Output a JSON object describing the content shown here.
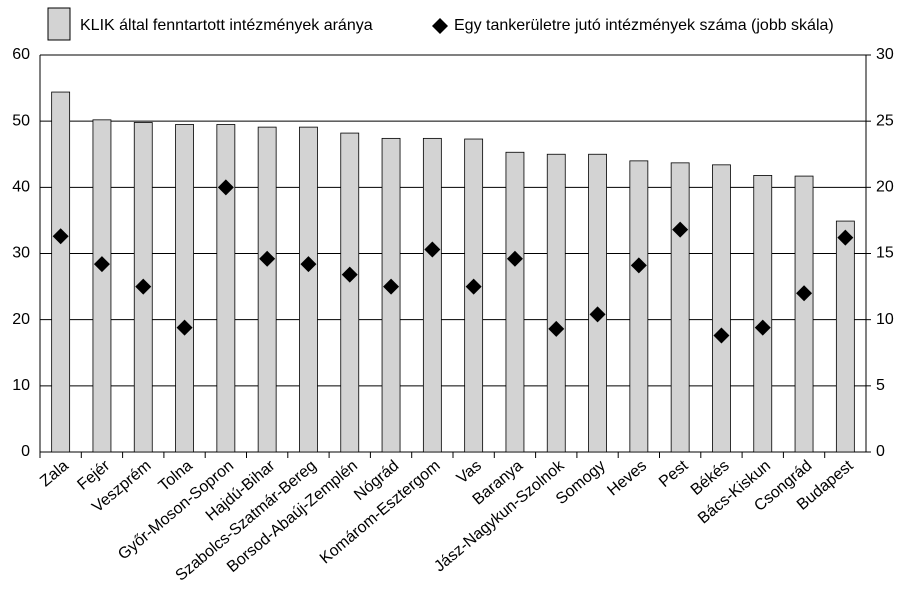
{
  "chart_data": {
    "type": "bar",
    "categories": [
      "Zala",
      "Fejér",
      "Veszprém",
      "Tolna",
      "Győr-Moson-Sopron",
      "Hajdú-Bihar",
      "Szabolcs-Szatmár-Bereg",
      "Borsod-Abaúj-Zemplén",
      "Nógrád",
      "Komárom-Esztergom",
      "Vas",
      "Baranya",
      "Jász-Nagykun-Szolnok",
      "Somogy",
      "Heves",
      "Pest",
      "Békés",
      "Bács-Kiskun",
      "Csongrád",
      "Budapest"
    ],
    "series": [
      {
        "name": "KLIK által fenntartott intézmények aránya",
        "type": "bar",
        "color": "#d3d3d3",
        "values": [
          54.4,
          50.2,
          49.8,
          49.5,
          49.5,
          49.1,
          49.1,
          48.2,
          47.4,
          47.4,
          47.3,
          45.3,
          45.0,
          45.0,
          44.0,
          43.7,
          43.4,
          41.8,
          41.7,
          34.9
        ]
      },
      {
        "name": "Egy tankerületre jutó intézmények száma (jobb skála)",
        "type": "scatter",
        "axis": "y2",
        "color": "#000000",
        "values": [
          16.3,
          14.2,
          12.5,
          9.4,
          20.0,
          14.6,
          14.2,
          13.4,
          12.5,
          15.3,
          12.5,
          14.6,
          9.3,
          10.4,
          14.1,
          16.8,
          8.8,
          9.4,
          12.0,
          16.2
        ]
      }
    ],
    "ylim": [
      0,
      60
    ],
    "yticks": [
      0,
      10,
      20,
      30,
      40,
      50,
      60
    ],
    "y2lim": [
      0,
      30
    ],
    "y2ticks": [
      0,
      5,
      10,
      15,
      20,
      25,
      30
    ],
    "grid": true
  }
}
